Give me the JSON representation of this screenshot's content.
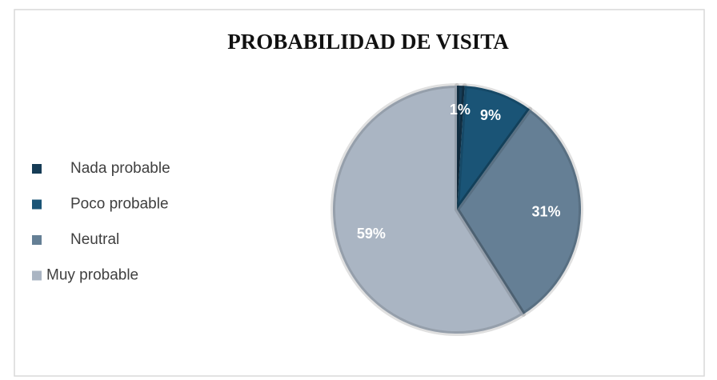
{
  "chart_data": {
    "type": "pie",
    "title": "PROBABILIDAD DE VISITA",
    "categories": [
      "Nada probable",
      "Poco probable",
      "Neutral",
      "Muy probable"
    ],
    "values": [
      1,
      9,
      31,
      59
    ],
    "value_labels": [
      "1%",
      "9%",
      "31%",
      "59%"
    ],
    "colors": [
      "#163c56",
      "#1a5476",
      "#657f95",
      "#aab5c3"
    ],
    "legend": "left"
  }
}
